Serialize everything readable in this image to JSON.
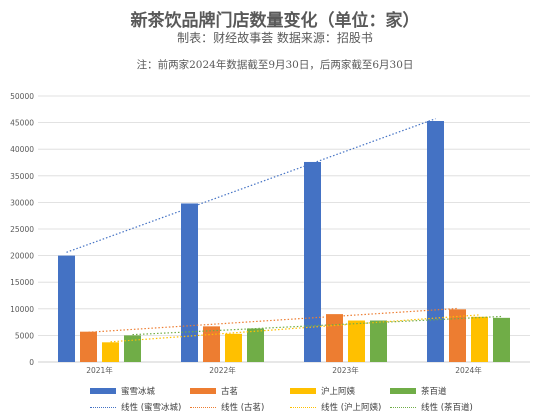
{
  "title": "新茶饮品牌门店数量变化（单位：家）",
  "subtitle": "制表：财经故事荟  数据来源：招股书",
  "note": "注：前两家2024年数据截至9月30日，后两家截至6月30日",
  "colors": {
    "蜜雪冰城": "#4472c4",
    "古茗": "#ed7d31",
    "沪上阿姨": "#ffc000",
    "茶百道": "#70ad47"
  },
  "chart_data": {
    "type": "bar",
    "categories": [
      "2021年",
      "2022年",
      "2023年",
      "2024年"
    ],
    "series": [
      {
        "name": "蜜雪冰城",
        "values": [
          20000,
          29800,
          37600,
          45300
        ]
      },
      {
        "name": "古茗",
        "values": [
          5700,
          6700,
          9000,
          9900
        ]
      },
      {
        "name": "沪上阿姨",
        "values": [
          3700,
          5300,
          7800,
          8500
        ]
      },
      {
        "name": "茶百道",
        "values": [
          5000,
          6300,
          7800,
          8300
        ]
      }
    ],
    "trendlines": [
      {
        "name": "线性 (蜜雪冰城)",
        "series": "蜜雪冰城",
        "type": "linear"
      },
      {
        "name": "线性 (古茗)",
        "series": "古茗",
        "type": "linear"
      },
      {
        "name": "线性 (沪上阿姨)",
        "series": "沪上阿姨",
        "type": "linear"
      },
      {
        "name": "线性 (茶百道)",
        "series": "茶百道",
        "type": "linear"
      }
    ],
    "ylim": [
      0,
      50000
    ],
    "yticks": [
      "0",
      "5000",
      "10000",
      "15000",
      "20000",
      "25000",
      "30000",
      "35000",
      "40000",
      "45000",
      "50000"
    ],
    "grid": true,
    "legend_position": "bottom"
  }
}
